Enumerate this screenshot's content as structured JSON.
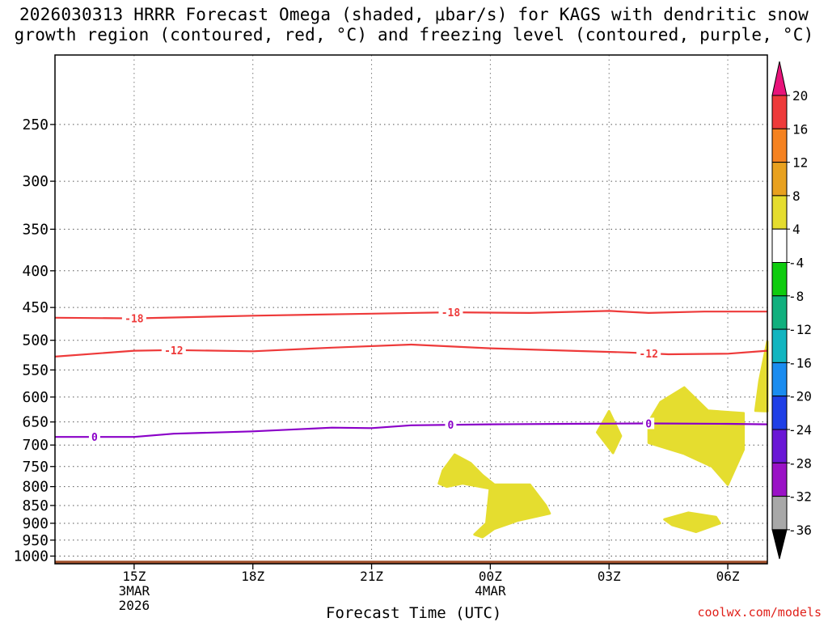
{
  "title_line1": "2026030313 HRRR Forecast Omega (shaded, μbar/s) for KAGS with dendritic snow",
  "title_line2": "growth region (contoured, red, °C) and freezing level (contoured, purple, °C)",
  "credit": "coolwx.com/models",
  "chart_data": {
    "type": "area",
    "title": "2026030313 HRRR Forecast Omega (shaded, μbar/s) for KAGS with dendritic snow growth region (contoured, red, °C) and freezing level (contoured, purple, °C)",
    "xlabel": "Forecast Time (UTC)",
    "ylabel": "",
    "x_unit": "hours since 2026-03-03 13Z",
    "xlim": [
      0,
      18
    ],
    "ylim_hPa": [
      1025,
      200
    ],
    "y_scale": "log (pressure, inverted)",
    "grid": true,
    "x_ticks": [
      {
        "hour": 2,
        "lines": [
          "15Z",
          "3MAR",
          "2026"
        ]
      },
      {
        "hour": 5,
        "lines": [
          "18Z"
        ]
      },
      {
        "hour": 8,
        "lines": [
          "21Z"
        ]
      },
      {
        "hour": 11,
        "lines": [
          "00Z",
          "4MAR"
        ]
      },
      {
        "hour": 14,
        "lines": [
          "03Z"
        ]
      },
      {
        "hour": 17,
        "lines": [
          "06Z"
        ]
      }
    ],
    "y_ticks": [
      250,
      300,
      350,
      400,
      450,
      500,
      550,
      600,
      650,
      700,
      750,
      800,
      850,
      900,
      950,
      1000
    ],
    "contours": [
      {
        "label": "-18",
        "color": "#ee3a3a",
        "level_C": -18,
        "points": [
          [
            0,
            465
          ],
          [
            2,
            466
          ],
          [
            5,
            462
          ],
          [
            8,
            459
          ],
          [
            10,
            457
          ],
          [
            12,
            458
          ],
          [
            14,
            455
          ],
          [
            15,
            458
          ],
          [
            16.4,
            456
          ],
          [
            18,
            456
          ]
        ],
        "label_hours": [
          2,
          10
        ]
      },
      {
        "label": "-12",
        "color": "#ee3a3a",
        "level_C": -12,
        "points": [
          [
            0,
            527
          ],
          [
            2,
            517
          ],
          [
            3,
            516
          ],
          [
            5,
            518
          ],
          [
            7,
            512
          ],
          [
            9,
            507
          ],
          [
            11,
            513
          ],
          [
            13,
            517
          ],
          [
            14.5,
            520
          ],
          [
            15.5,
            523
          ],
          [
            17,
            522
          ],
          [
            18,
            517
          ]
        ],
        "label_hours": [
          3,
          15
        ]
      },
      {
        "label": "0",
        "color": "#8a00c8",
        "level_C": 0,
        "points": [
          [
            0,
            682
          ],
          [
            2,
            682
          ],
          [
            3,
            675
          ],
          [
            5,
            670
          ],
          [
            7,
            662
          ],
          [
            8,
            663
          ],
          [
            9,
            657
          ],
          [
            11,
            655
          ],
          [
            13,
            654
          ],
          [
            15,
            653
          ],
          [
            17,
            654
          ],
          [
            18,
            655
          ]
        ],
        "label_hours": [
          1,
          10,
          15
        ]
      }
    ],
    "shaded_omega_4_to_8": [
      [
        [
          9.7,
          792
        ],
        [
          9.8,
          760
        ],
        [
          10.1,
          722
        ],
        [
          10.5,
          742
        ],
        [
          10.8,
          771
        ],
        [
          11.1,
          795
        ],
        [
          11,
          805
        ],
        [
          10.3,
          792
        ],
        [
          9.9,
          800
        ]
      ],
      [
        [
          11,
          795
        ],
        [
          12,
          795
        ],
        [
          12.4,
          850
        ],
        [
          12.5,
          872
        ],
        [
          11.7,
          892
        ],
        [
          11.1,
          916
        ],
        [
          10.8,
          941
        ],
        [
          10.6,
          933
        ],
        [
          10.9,
          900
        ]
      ],
      [
        [
          13.7,
          672
        ],
        [
          14,
          628
        ],
        [
          14.3,
          680
        ],
        [
          14.1,
          718
        ]
      ],
      [
        [
          15,
          650
        ],
        [
          15.3,
          610
        ],
        [
          15.9,
          582
        ],
        [
          16.5,
          627
        ],
        [
          17.4,
          632
        ],
        [
          17.4,
          710
        ],
        [
          17,
          795
        ],
        [
          16.6,
          750
        ],
        [
          15.9,
          720
        ],
        [
          15,
          695
        ]
      ],
      [
        [
          15.4,
          889
        ],
        [
          16,
          870
        ],
        [
          16.7,
          882
        ],
        [
          16.8,
          900
        ],
        [
          16.2,
          925
        ],
        [
          15.6,
          905
        ]
      ],
      [
        [
          17.7,
          627
        ],
        [
          17.8,
          570
        ],
        [
          18,
          502
        ],
        [
          18,
          628
        ]
      ]
    ],
    "surface": {
      "color": "#a0522d",
      "pressure_hPa": 1015
    },
    "colorbar": {
      "labels": [
        "20",
        "16",
        "12",
        "8",
        "4",
        "-4",
        "-8",
        "-12",
        "-16",
        "-20",
        "-24",
        "-28",
        "-32",
        "-36"
      ],
      "colors": [
        "#ee3a3a",
        "#f58220",
        "#e8a11f",
        "#e5dd2f",
        "#ffffff",
        "#0fcc0f",
        "#11b07e",
        "#12b5c0",
        "#1a8cf0",
        "#1f3fe6",
        "#6a17d6",
        "#9a12c6",
        "#a8a8a8"
      ],
      "top_arrow_color": "#e8137a",
      "bottom_arrow_color": "#000000"
    }
  }
}
